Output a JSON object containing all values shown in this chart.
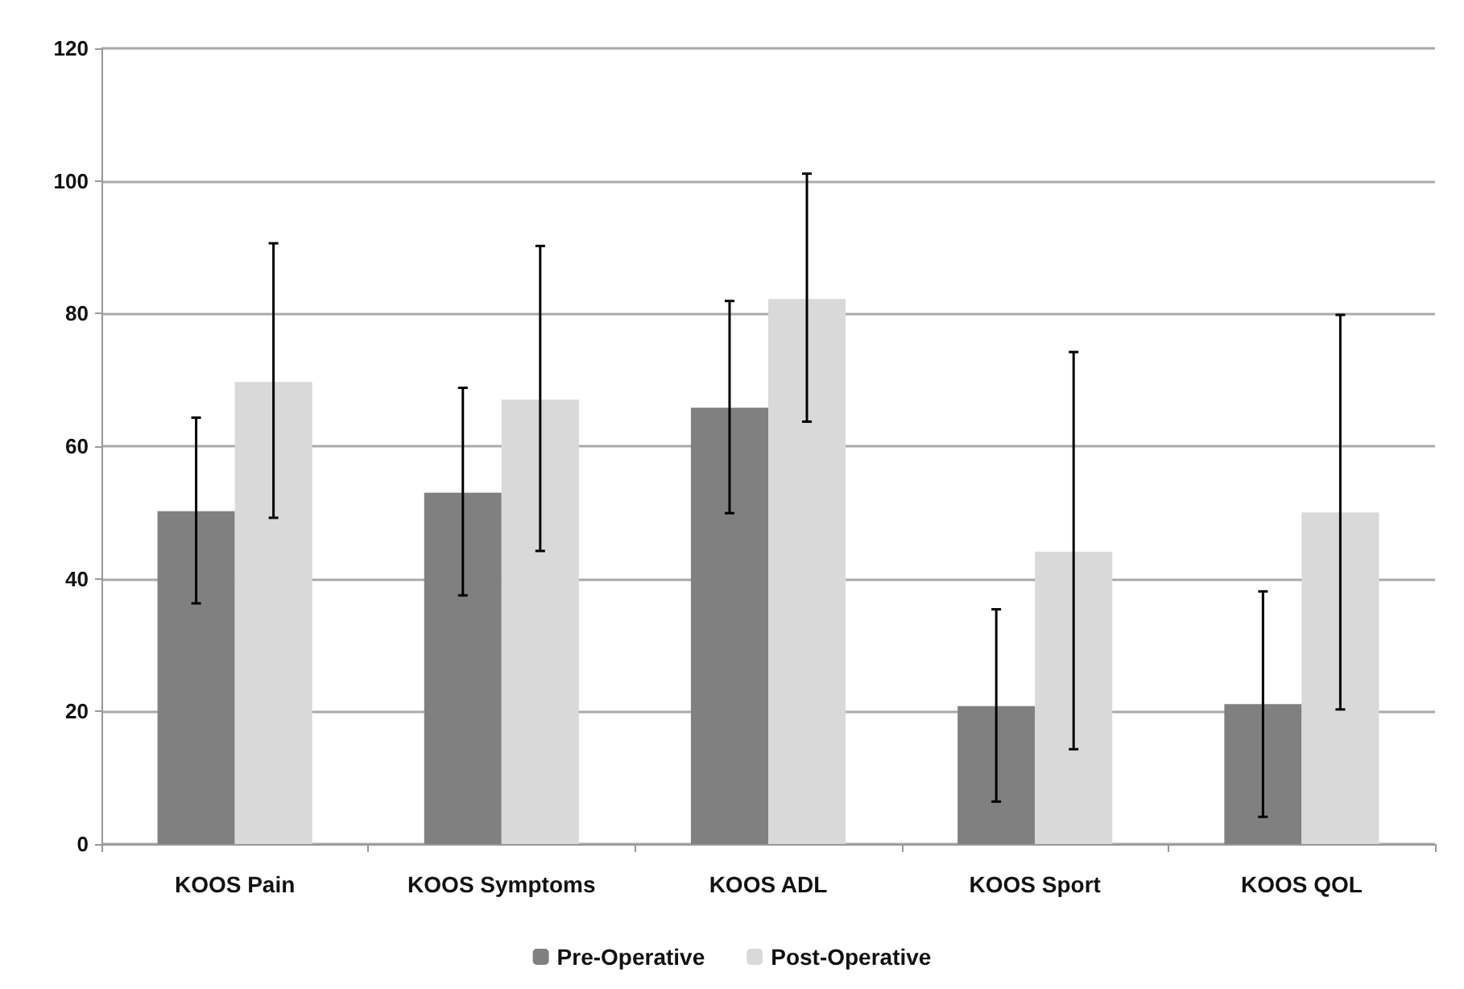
{
  "chart_data": {
    "type": "bar",
    "categories": [
      "KOOS Pain",
      "KOOS Symptoms",
      "KOOS ADL",
      "KOOS Sport",
      "KOOS QOL"
    ],
    "series": [
      {
        "name": "Pre-Operative",
        "color": "#808080",
        "values": [
          50.2,
          53,
          65.8,
          20.8,
          21.1
        ],
        "errors": [
          [
            36.3,
            64.3
          ],
          [
            37.5,
            68.8
          ],
          [
            49.9,
            81.9
          ],
          [
            6.4,
            35.4
          ],
          [
            4.1,
            38.1
          ]
        ]
      },
      {
        "name": "Post-Operative",
        "color": "#d9d9d9",
        "values": [
          69.7,
          67,
          82.2,
          44.1,
          50
        ],
        "errors": [
          [
            49.2,
            90.6
          ],
          [
            44.2,
            90.2
          ],
          [
            63.7,
            101.1
          ],
          [
            14.3,
            74.2
          ],
          [
            20.3,
            79.8
          ]
        ]
      }
    ],
    "ylim": [
      0,
      120
    ],
    "yticks": [
      0,
      20,
      40,
      60,
      80,
      100,
      120
    ],
    "grid": "y",
    "legend": "bottom"
  }
}
